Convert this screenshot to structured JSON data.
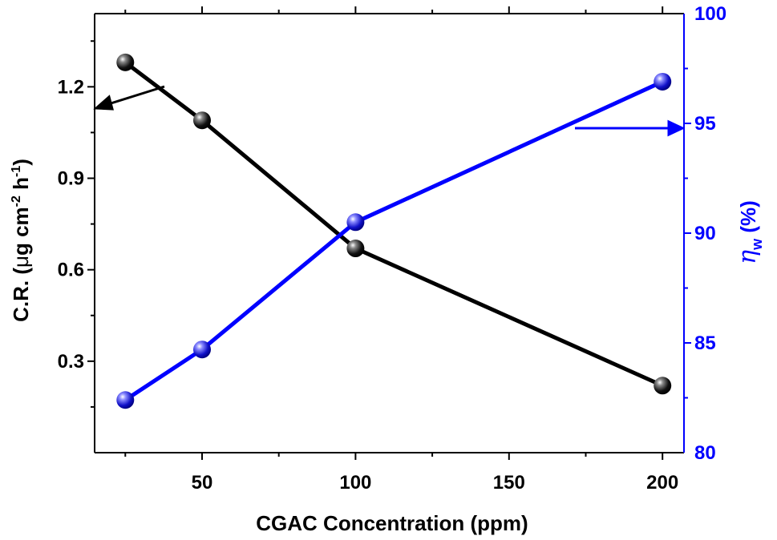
{
  "chart_data": {
    "type": "line",
    "xlabel": "CGAC Concentration (ppm)",
    "xlim": [
      15,
      207
    ],
    "xticks": [
      50,
      100,
      150,
      200
    ],
    "xtick_labels": [
      "50",
      "100",
      "150",
      "200"
    ],
    "ylabel_left": {
      "prefix": "C.R. (",
      "mu": "μ",
      "g": "g cm",
      "sup1": "-2",
      "h": " h",
      "sup2": "-1",
      "suffix": ")"
    },
    "ylim_left": [
      0.0,
      1.44
    ],
    "yticks_left": [
      0.3,
      0.6,
      0.9,
      1.2
    ],
    "ytick_labels_left": [
      "0.3",
      "0.6",
      "0.9",
      "1.2"
    ],
    "ylabel_right": {
      "eta": "η",
      "sub": "w",
      "suffix": " (%)"
    },
    "ylim_right": [
      80,
      100
    ],
    "yticks_right": [
      80,
      85,
      90,
      95,
      100
    ],
    "ytick_labels_right": [
      "80",
      "85",
      "90",
      "95",
      "100"
    ],
    "x": [
      25,
      50,
      100,
      200
    ],
    "series": [
      {
        "name": "C.R.",
        "axis": "left",
        "color": "#000000",
        "values": [
          1.28,
          1.09,
          0.67,
          0.22
        ]
      },
      {
        "name": "ηw",
        "axis": "right",
        "color": "#0000ff",
        "values": [
          82.4,
          84.7,
          90.5,
          96.9
        ]
      }
    ]
  }
}
